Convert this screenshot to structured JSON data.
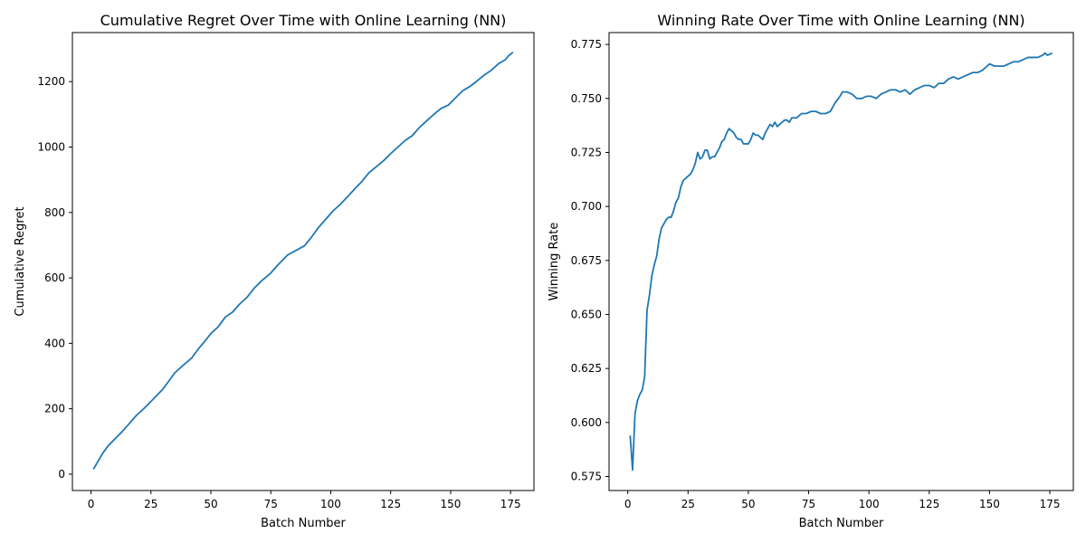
{
  "chart_data": [
    {
      "type": "line",
      "title": "Cumulative Regret Over Time with Online Learning (NN)",
      "xlabel": "Batch Number",
      "ylabel": "Cumulative Regret",
      "xlim": [
        -7.75,
        184.75
      ],
      "ylim": [
        -50,
        1350
      ],
      "xticks": [
        0,
        25,
        50,
        75,
        100,
        125,
        150,
        175
      ],
      "yticks": [
        0,
        200,
        400,
        600,
        800,
        1000,
        1200
      ],
      "xtick_labels": [
        "0",
        "25",
        "50",
        "75",
        "100",
        "125",
        "150",
        "175"
      ],
      "ytick_labels": [
        "0",
        "200",
        "400",
        "600",
        "800",
        "1000",
        "1200"
      ],
      "grid": false,
      "series": [
        {
          "color": "#1f77b4",
          "points": [
            [
              1,
              15
            ],
            [
              3,
              40
            ],
            [
              5,
              65
            ],
            [
              7,
              85
            ],
            [
              10,
              108
            ],
            [
              13,
              130
            ],
            [
              16,
              155
            ],
            [
              19,
              180
            ],
            [
              22,
              200
            ],
            [
              25,
              222
            ],
            [
              28,
              245
            ],
            [
              30,
              260
            ],
            [
              32,
              280
            ],
            [
              35,
              310
            ],
            [
              38,
              330
            ],
            [
              42,
              355
            ],
            [
              45,
              385
            ],
            [
              47,
              402
            ],
            [
              50,
              430
            ],
            [
              53,
              450
            ],
            [
              56,
              480
            ],
            [
              59,
              495
            ],
            [
              62,
              520
            ],
            [
              65,
              540
            ],
            [
              68,
              568
            ],
            [
              71,
              590
            ],
            [
              75,
              615
            ],
            [
              78,
              640
            ],
            [
              82,
              670
            ],
            [
              85,
              682
            ],
            [
              89,
              698
            ],
            [
              92,
              725
            ],
            [
              95,
              755
            ],
            [
              98,
              780
            ],
            [
              101,
              805
            ],
            [
              104,
              825
            ],
            [
              107,
              848
            ],
            [
              110,
              872
            ],
            [
              113,
              895
            ],
            [
              116,
              922
            ],
            [
              119,
              940
            ],
            [
              122,
              958
            ],
            [
              125,
              980
            ],
            [
              128,
              1000
            ],
            [
              131,
              1020
            ],
            [
              134,
              1035
            ],
            [
              137,
              1060
            ],
            [
              140,
              1080
            ],
            [
              143,
              1100
            ],
            [
              146,
              1118
            ],
            [
              149,
              1128
            ],
            [
              152,
              1150
            ],
            [
              155,
              1172
            ],
            [
              158,
              1185
            ],
            [
              161,
              1202
            ],
            [
              164,
              1220
            ],
            [
              167,
              1235
            ],
            [
              170,
              1255
            ],
            [
              173,
              1268
            ],
            [
              174,
              1278
            ],
            [
              176,
              1290
            ]
          ]
        }
      ]
    },
    {
      "type": "line",
      "title": "Winning Rate Over Time with Online Learning (NN)",
      "xlabel": "Batch Number",
      "ylabel": "Winning Rate",
      "xlim": [
        -7.75,
        184.75
      ],
      "ylim": [
        0.5685,
        0.7805
      ],
      "xticks": [
        0,
        25,
        50,
        75,
        100,
        125,
        150,
        175
      ],
      "yticks": [
        0.575,
        0.6,
        0.625,
        0.65,
        0.675,
        0.7,
        0.725,
        0.75,
        0.775
      ],
      "xtick_labels": [
        "0",
        "25",
        "50",
        "75",
        "100",
        "125",
        "150",
        "175"
      ],
      "ytick_labels": [
        "0.575",
        "0.600",
        "0.625",
        "0.650",
        "0.675",
        "0.700",
        "0.725",
        "0.750",
        "0.775"
      ],
      "grid": false,
      "series": [
        {
          "color": "#1f77b4",
          "points": [
            [
              1,
              0.594
            ],
            [
              2,
              0.578
            ],
            [
              3,
              0.604
            ],
            [
              4,
              0.61
            ],
            [
              5,
              0.613
            ],
            [
              6,
              0.615
            ],
            [
              7,
              0.621
            ],
            [
              8,
              0.652
            ],
            [
              9,
              0.659
            ],
            [
              10,
              0.668
            ],
            [
              11,
              0.673
            ],
            [
              12,
              0.677
            ],
            [
              13,
              0.685
            ],
            [
              14,
              0.69
            ],
            [
              15,
              0.692
            ],
            [
              16,
              0.694
            ],
            [
              17,
              0.695
            ],
            [
              18,
              0.695
            ],
            [
              19,
              0.698
            ],
            [
              20,
              0.702
            ],
            [
              21,
              0.704
            ],
            [
              22,
              0.709
            ],
            [
              23,
              0.712
            ],
            [
              24,
              0.713
            ],
            [
              25,
              0.714
            ],
            [
              26,
              0.715
            ],
            [
              27,
              0.717
            ],
            [
              28,
              0.72
            ],
            [
              29,
              0.725
            ],
            [
              30,
              0.722
            ],
            [
              31,
              0.723
            ],
            [
              32,
              0.726
            ],
            [
              33,
              0.726
            ],
            [
              34,
              0.722
            ],
            [
              35,
              0.723
            ],
            [
              36,
              0.723
            ],
            [
              37,
              0.725
            ],
            [
              38,
              0.727
            ],
            [
              39,
              0.73
            ],
            [
              40,
              0.731
            ],
            [
              41,
              0.734
            ],
            [
              42,
              0.736
            ],
            [
              43,
              0.735
            ],
            [
              44,
              0.734
            ],
            [
              45,
              0.732
            ],
            [
              46,
              0.731
            ],
            [
              47,
              0.731
            ],
            [
              48,
              0.729
            ],
            [
              49,
              0.729
            ],
            [
              50,
              0.729
            ],
            [
              51,
              0.731
            ],
            [
              52,
              0.734
            ],
            [
              53,
              0.733
            ],
            [
              54,
              0.733
            ],
            [
              55,
              0.732
            ],
            [
              56,
              0.731
            ],
            [
              57,
              0.734
            ],
            [
              58,
              0.736
            ],
            [
              59,
              0.738
            ],
            [
              60,
              0.737
            ],
            [
              61,
              0.739
            ],
            [
              62,
              0.737
            ],
            [
              63,
              0.738
            ],
            [
              64,
              0.739
            ],
            [
              65,
              0.74
            ],
            [
              66,
              0.74
            ],
            [
              67,
              0.739
            ],
            [
              68,
              0.741
            ],
            [
              70,
              0.741
            ],
            [
              72,
              0.743
            ],
            [
              74,
              0.743
            ],
            [
              76,
              0.744
            ],
            [
              78,
              0.744
            ],
            [
              80,
              0.743
            ],
            [
              82,
              0.743
            ],
            [
              84,
              0.744
            ],
            [
              86,
              0.748
            ],
            [
              88,
              0.751
            ],
            [
              89,
              0.753
            ],
            [
              91,
              0.753
            ],
            [
              93,
              0.752
            ],
            [
              95,
              0.75
            ],
            [
              97,
              0.75
            ],
            [
              99,
              0.751
            ],
            [
              101,
              0.751
            ],
            [
              103,
              0.75
            ],
            [
              105,
              0.752
            ],
            [
              107,
              0.753
            ],
            [
              109,
              0.754
            ],
            [
              111,
              0.754
            ],
            [
              113,
              0.753
            ],
            [
              115,
              0.754
            ],
            [
              117,
              0.752
            ],
            [
              119,
              0.754
            ],
            [
              121,
              0.755
            ],
            [
              123,
              0.756
            ],
            [
              125,
              0.756
            ],
            [
              127,
              0.755
            ],
            [
              129,
              0.757
            ],
            [
              131,
              0.757
            ],
            [
              133,
              0.759
            ],
            [
              135,
              0.76
            ],
            [
              137,
              0.759
            ],
            [
              139,
              0.76
            ],
            [
              141,
              0.761
            ],
            [
              143,
              0.762
            ],
            [
              145,
              0.762
            ],
            [
              147,
              0.763
            ],
            [
              149,
              0.765
            ],
            [
              150,
              0.766
            ],
            [
              152,
              0.765
            ],
            [
              154,
              0.765
            ],
            [
              156,
              0.765
            ],
            [
              158,
              0.766
            ],
            [
              160,
              0.767
            ],
            [
              162,
              0.767
            ],
            [
              164,
              0.768
            ],
            [
              166,
              0.769
            ],
            [
              168,
              0.769
            ],
            [
              170,
              0.769
            ],
            [
              172,
              0.77
            ],
            [
              173,
              0.771
            ],
            [
              174,
              0.77
            ],
            [
              176,
              0.771
            ]
          ]
        }
      ]
    }
  ]
}
